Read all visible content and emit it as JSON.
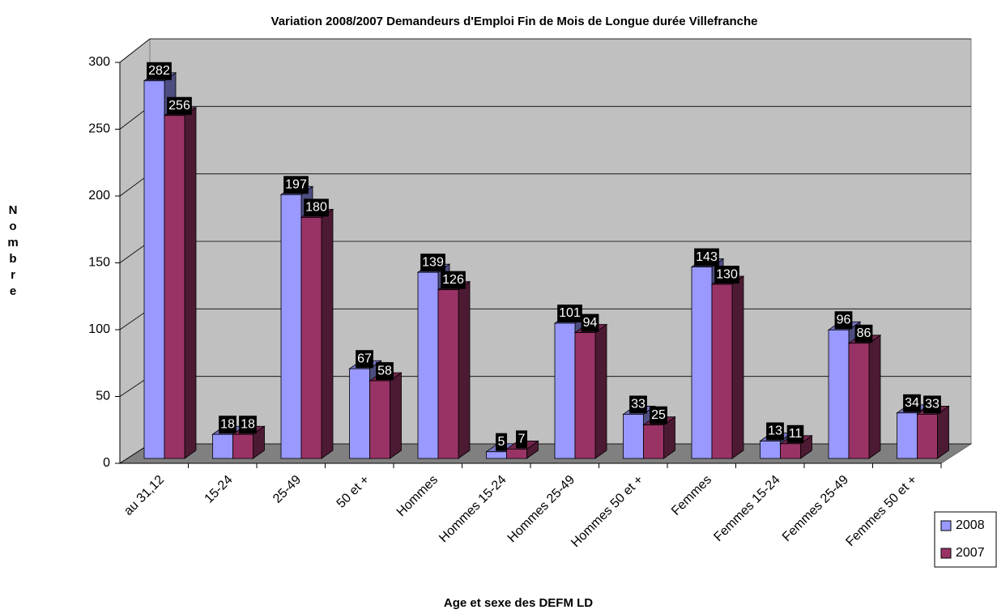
{
  "chart_data": {
    "type": "bar3d",
    "title": "Variation 2008/2007 Demandeurs d'Emploi Fin de Mois de Longue durée Villefranche",
    "x_label": "Age et sexe des DEFM LD",
    "y_label": "Nombre",
    "categories": [
      "au 31,12",
      "15-24",
      "25-49",
      "50 et +",
      "Hommes",
      "Hommes 15-24",
      "Hommes 25-49",
      "Hommes 50 et +",
      "Femmes",
      "Femmes 15-24",
      "Femmes 25-49",
      "Femmes 50 et +"
    ],
    "series": [
      {
        "name": "2008",
        "color": "#9999ff",
        "values": [
          282,
          18,
          197,
          67,
          139,
          5,
          101,
          33,
          143,
          13,
          96,
          34
        ]
      },
      {
        "name": "2007",
        "color": "#993366",
        "values": [
          256,
          18,
          180,
          58,
          126,
          7,
          94,
          25,
          130,
          11,
          86,
          33
        ]
      }
    ],
    "ylim": [
      0,
      300
    ],
    "yticks": [
      0,
      50,
      100,
      150,
      200,
      250,
      300
    ],
    "grid": true,
    "legend": "right"
  }
}
